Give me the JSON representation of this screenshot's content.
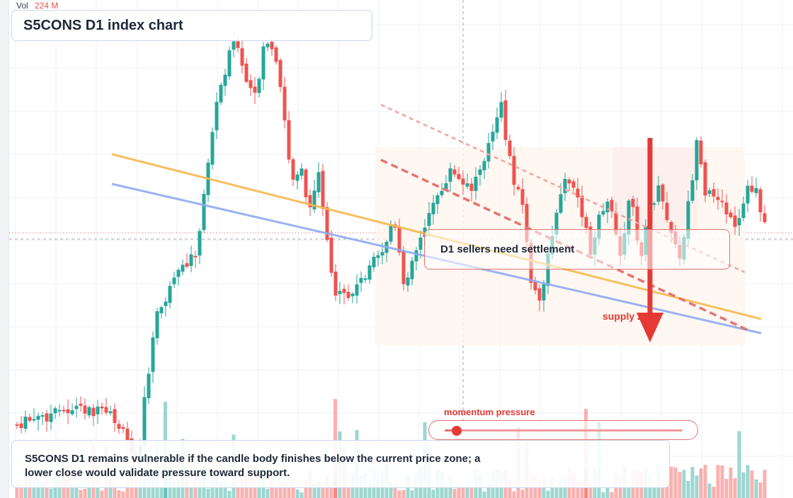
{
  "header": {
    "vol_label": "Vol",
    "vol_value": "224 M",
    "title": "S5CONS D1 index chart"
  },
  "annotations": {
    "resistance_label": "D1 sellers need settlement",
    "supply_label": "supply zone",
    "momentum_label": "momentum pressure",
    "momentum_level": 0.05,
    "note": "S5CONS D1 remains vulnerable if the candle body finishes below the current price zone; a lower close would validate pressure toward support."
  },
  "colors": {
    "up": "#26a69a",
    "down": "#ef5350",
    "accent_red": "#e53935",
    "trend_orange": "#f6b94e",
    "trend_blue": "#8fabf0",
    "box_border": "#c8d6ee"
  },
  "chart_data": {
    "type": "candlestick",
    "title": "S5CONS D1 index chart",
    "xlabel": "",
    "ylabel": "",
    "grid": true,
    "volume_label": "Vol 224 M"
  }
}
